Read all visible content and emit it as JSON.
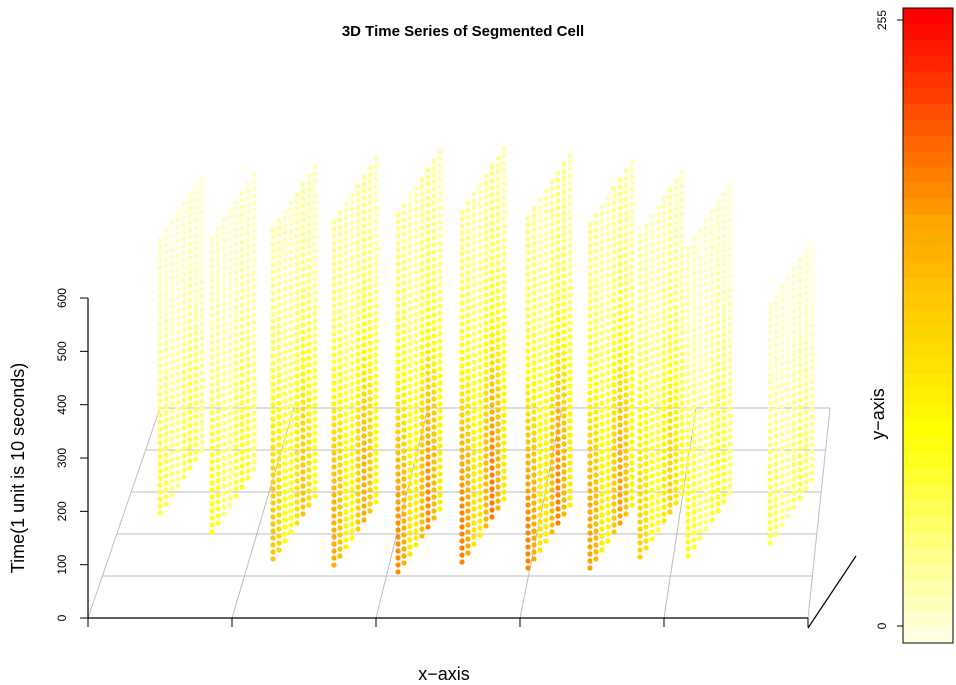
{
  "chart_data": {
    "type": "scatter",
    "title": "3D Time Series of Segmented Cell",
    "xlabel": "x−axis",
    "ylabel": "y−axis",
    "zlabel": "Time(1 unit is 10 seconds)",
    "z_ticks": [
      "0",
      "100",
      "200",
      "300",
      "400",
      "500",
      "600"
    ],
    "z_range": [
      0,
      600
    ],
    "color_scale": {
      "min_label": "0",
      "max_label": "255",
      "range": [
        0,
        255
      ],
      "colors": [
        "#ffffe0",
        "#ffff00",
        "#ffa500",
        "#ff0000"
      ]
    },
    "slices": [
      {
        "slice": 1,
        "max_intensity": 80
      },
      {
        "slice": 2,
        "max_intensity": 95
      },
      {
        "slice": 3,
        "max_intensity": 175
      },
      {
        "slice": 4,
        "max_intensity": 205
      },
      {
        "slice": 5,
        "max_intensity": 230
      },
      {
        "slice": 6,
        "max_intensity": 240
      },
      {
        "slice": 7,
        "max_intensity": 235
      },
      {
        "slice": 8,
        "max_intensity": 215
      },
      {
        "slice": 9,
        "max_intensity": 160
      },
      {
        "slice": 10,
        "max_intensity": 95
      },
      {
        "slice": 11,
        "max_intensity": 70
      }
    ]
  }
}
